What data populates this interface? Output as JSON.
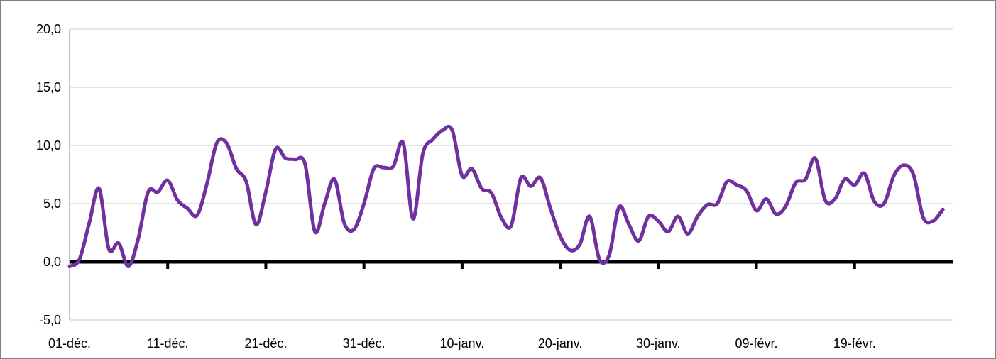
{
  "chart_data": {
    "type": "line",
    "title": "",
    "xlabel": "",
    "ylabel": "",
    "ylim": [
      -5,
      20
    ],
    "y_ticks": [
      -5,
      0,
      5,
      10,
      15,
      20
    ],
    "y_tick_labels": [
      "-5,0",
      "0,0",
      "5,0",
      "10,0",
      "15,0",
      "20,0"
    ],
    "x_tick_labels": [
      "01-déc.",
      "11-déc.",
      "21-déc.",
      "31-déc.",
      "10-janv.",
      "20-janv.",
      "30-janv.",
      "09-févr.",
      "19-févr."
    ],
    "grid": "horizontal",
    "legend": "none",
    "series": [
      {
        "color": "#7030A0",
        "x": [
          "01-déc.",
          "02-déc.",
          "03-déc.",
          "04-déc.",
          "05-déc.",
          "06-déc.",
          "07-déc.",
          "08-déc.",
          "09-déc.",
          "10-déc.",
          "11-déc.",
          "12-déc.",
          "13-déc.",
          "14-déc.",
          "15-déc.",
          "16-déc.",
          "17-déc.",
          "18-déc.",
          "19-déc.",
          "20-déc.",
          "21-déc.",
          "22-déc.",
          "23-déc.",
          "24-déc.",
          "25-déc.",
          "26-déc.",
          "27-déc.",
          "28-déc.",
          "29-déc.",
          "30-déc.",
          "31-déc.",
          "01-janv.",
          "02-janv.",
          "03-janv.",
          "04-janv.",
          "05-janv.",
          "06-janv.",
          "07-janv.",
          "08-janv.",
          "09-janv.",
          "10-janv.",
          "11-janv.",
          "12-janv.",
          "13-janv.",
          "14-janv.",
          "15-janv.",
          "16-janv.",
          "17-janv.",
          "18-janv.",
          "19-janv.",
          "20-janv.",
          "21-janv.",
          "22-janv.",
          "23-janv.",
          "24-janv.",
          "25-janv.",
          "26-janv.",
          "27-janv.",
          "28-janv.",
          "29-janv.",
          "30-janv.",
          "31-janv.",
          "01-févr.",
          "02-févr.",
          "03-févr.",
          "04-févr.",
          "05-févr.",
          "06-févr.",
          "07-févr.",
          "08-févr.",
          "09-févr.",
          "10-févr.",
          "11-févr.",
          "12-févr.",
          "13-févr.",
          "14-févr.",
          "15-févr.",
          "16-févr.",
          "17-févr.",
          "18-févr.",
          "19-févr.",
          "20-févr.",
          "21-févr.",
          "22-févr.",
          "23-févr.",
          "24-févr.",
          "25-févr.",
          "26-févr.",
          "27-févr.",
          "28-févr."
        ],
        "values": [
          -0.4,
          0.2,
          3.3,
          6.3,
          1.1,
          1.6,
          -0.4,
          2.0,
          6.0,
          6.0,
          7.0,
          5.3,
          4.6,
          4.0,
          6.7,
          10.2,
          10.2,
          8.0,
          6.9,
          3.2,
          6.0,
          9.7,
          8.9,
          8.8,
          8.4,
          2.6,
          5.0,
          7.1,
          3.3,
          2.8,
          5.0,
          8.0,
          8.1,
          8.2,
          10.2,
          3.7,
          9.3,
          10.5,
          11.3,
          11.3,
          7.4,
          8.0,
          6.3,
          5.9,
          3.8,
          3.1,
          7.2,
          6.5,
          7.2,
          4.6,
          2.2,
          1.0,
          1.5,
          3.9,
          0.2,
          0.6,
          4.7,
          3.2,
          1.8,
          3.9,
          3.5,
          2.6,
          3.9,
          2.4,
          3.9,
          4.9,
          5.0,
          6.9,
          6.6,
          6.1,
          4.4,
          5.4,
          4.1,
          4.8,
          6.8,
          7.1,
          8.9,
          5.3,
          5.4,
          7.1,
          6.6,
          7.6,
          5.2,
          5.0,
          7.4,
          8.3,
          7.5,
          3.8,
          3.5,
          4.5
        ]
      }
    ]
  }
}
